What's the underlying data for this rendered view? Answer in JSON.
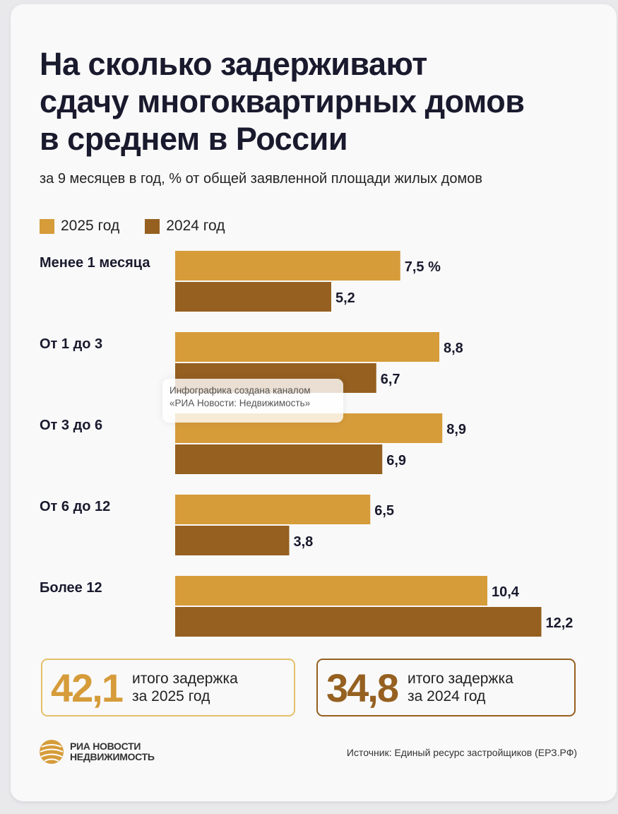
{
  "title": "На сколько задерживают\nсдачу многоквартирных домов\nв среднем в России",
  "subtitle": "за 9 месяцев в год, % от общей заявленной площади жилых домов",
  "colors": {
    "series_2025": "#d69c3a",
    "series_2024": "#956020",
    "text_dark": "#1a1a2e"
  },
  "chart_data": {
    "type": "bar",
    "orientation": "horizontal",
    "categories": [
      "Менее 1 месяца",
      "От 1 до 3",
      "От 3 до 6",
      "От 6 до 12",
      "Более 12"
    ],
    "series": [
      {
        "name": "2025 год",
        "values": [
          7.5,
          8.8,
          8.9,
          6.5,
          10.4
        ],
        "labels": [
          "7,5 %",
          "8,8",
          "8,9",
          "6,5",
          "10,4"
        ]
      },
      {
        "name": "2024 год",
        "values": [
          5.2,
          6.7,
          6.9,
          3.8,
          12.2
        ],
        "labels": [
          "5,2",
          "6,7",
          "6,9",
          "3,8",
          "12,2"
        ]
      }
    ],
    "title": "На сколько задерживают сдачу многоквартирных домов в среднем в России",
    "xlabel": "",
    "ylabel": "",
    "unit": "%",
    "legend": "top-left"
  },
  "legend": {
    "item_2025": "2025 год",
    "item_2024": "2024 год"
  },
  "watermark": "Инфографика создана каналом\n«РИА Новости: Недвижимость»",
  "totals": {
    "y2025": {
      "value": "42,1",
      "label": "итого задержка\nза 2025 год"
    },
    "y2024": {
      "value": "34,8",
      "label": "итого задержка\nза 2024 год"
    }
  },
  "footer": {
    "logo_text": "РИА НОВОСТИ\nНЕДВИЖИМОСТЬ",
    "source": "Источник: Единый ресурс застройщиков (ЕРЗ.РФ)"
  }
}
